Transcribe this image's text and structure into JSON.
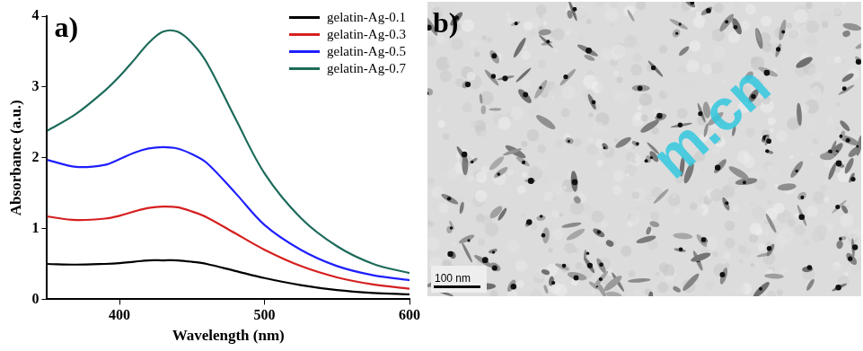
{
  "chart_data": {
    "type": "line",
    "panel_label": "a)",
    "x_label": "Wavelength (nm)",
    "y_label": "Absorbance (a.u.)",
    "x": [
      350,
      370,
      390,
      400,
      410,
      420,
      430,
      440,
      450,
      460,
      480,
      500,
      525,
      550,
      575,
      600
    ],
    "series": [
      {
        "name": "gelatin-Ag-0.1",
        "color": "#000000",
        "values": [
          0.5,
          0.49,
          0.5,
          0.51,
          0.53,
          0.55,
          0.55,
          0.55,
          0.53,
          0.5,
          0.4,
          0.3,
          0.2,
          0.13,
          0.09,
          0.07
        ]
      },
      {
        "name": "gelatin-Ag-0.3",
        "color": "#d61f1f",
        "values": [
          1.17,
          1.12,
          1.14,
          1.18,
          1.24,
          1.29,
          1.31,
          1.3,
          1.24,
          1.16,
          0.93,
          0.7,
          0.47,
          0.31,
          0.21,
          0.15
        ]
      },
      {
        "name": "gelatin-Ag-0.5",
        "color": "#1f1fff",
        "values": [
          1.97,
          1.87,
          1.9,
          1.98,
          2.07,
          2.13,
          2.15,
          2.13,
          2.05,
          1.93,
          1.5,
          1.05,
          0.7,
          0.47,
          0.34,
          0.27
        ]
      },
      {
        "name": "gelatin-Ag-0.7",
        "color": "#1d6b5a",
        "values": [
          2.38,
          2.62,
          2.95,
          3.15,
          3.38,
          3.62,
          3.78,
          3.78,
          3.62,
          3.35,
          2.55,
          1.78,
          1.15,
          0.75,
          0.5,
          0.37
        ]
      }
    ],
    "xlim": [
      350,
      600
    ],
    "xticks": [
      400,
      500,
      600
    ],
    "ylim": [
      0,
      4
    ],
    "yticks": [
      0,
      1,
      2,
      3,
      4
    ],
    "grid": false,
    "legend": "upper right"
  },
  "image_panel": {
    "label": "b)",
    "scale_bar": "100 nm",
    "watermark": "m.cn"
  }
}
